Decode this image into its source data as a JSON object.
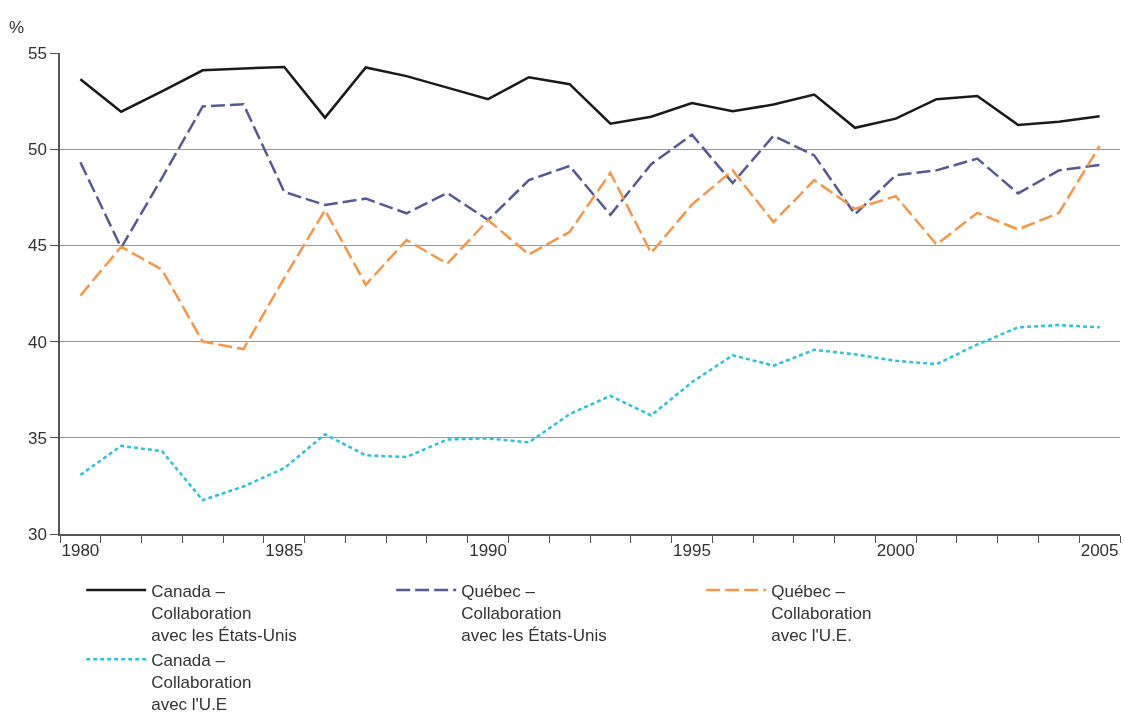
{
  "chart_data": {
    "type": "line",
    "ylabel": "%",
    "categories": [
      "1980",
      null,
      null,
      null,
      null,
      "1985",
      null,
      null,
      null,
      null,
      "1990",
      null,
      null,
      null,
      null,
      "1995",
      null,
      null,
      null,
      null,
      "2000",
      null,
      null,
      null,
      null,
      "2005"
    ],
    "ylim": [
      30,
      55
    ],
    "yticks": [
      30,
      35,
      40,
      45,
      50,
      55
    ],
    "grid": "y",
    "legend": "bottom",
    "marker": "none",
    "series": [
      {
        "name": "Canada –\nCollaboration\navec les États-Unis",
        "color": "#1a1a1a",
        "line_style": "solid",
        "values": [
          53.64,
          51.95,
          53.0,
          54.1,
          54.2,
          54.27,
          51.64,
          54.25,
          53.8,
          53.2,
          52.6,
          53.74,
          53.38,
          51.33,
          51.69,
          52.4,
          51.97,
          52.32,
          52.84,
          51.11,
          51.59,
          52.6,
          52.76,
          51.26,
          51.43,
          51.71
        ]
      },
      {
        "name": "Québec –\nCollaboration\navec les États-Unis",
        "color": "#555a95",
        "line_style": "dashed",
        "values": [
          49.32,
          44.88,
          48.5,
          52.22,
          52.34,
          47.78,
          47.1,
          47.43,
          46.67,
          47.72,
          46.32,
          48.39,
          49.13,
          46.59,
          49.22,
          50.75,
          48.24,
          50.7,
          49.68,
          46.62,
          48.65,
          48.9,
          49.51,
          47.7,
          48.9,
          49.18
        ]
      },
      {
        "name": "Québec –\nCollaboration\navec l'U.E.",
        "color": "#f7964a",
        "line_style": "dashed",
        "values": [
          42.39,
          44.93,
          43.74,
          40.0,
          39.61,
          43.3,
          46.84,
          42.95,
          45.28,
          44.05,
          46.32,
          44.53,
          45.7,
          48.77,
          44.61,
          47.12,
          48.9,
          46.21,
          48.39,
          46.9,
          47.56,
          45.05,
          46.69,
          45.83,
          46.69,
          50.17
        ]
      },
      {
        "name": "Canada –\nCollaboration\navec l'U.E",
        "color": "#2fc1dc",
        "line_style": "dotted",
        "values": [
          33.07,
          34.58,
          34.31,
          31.76,
          32.47,
          33.42,
          35.18,
          34.09,
          34.0,
          34.91,
          34.97,
          34.76,
          36.23,
          37.18,
          36.16,
          37.89,
          39.29,
          38.75,
          39.57,
          39.34,
          39.0,
          38.83,
          39.85,
          40.74,
          40.86,
          40.74
        ]
      }
    ]
  }
}
